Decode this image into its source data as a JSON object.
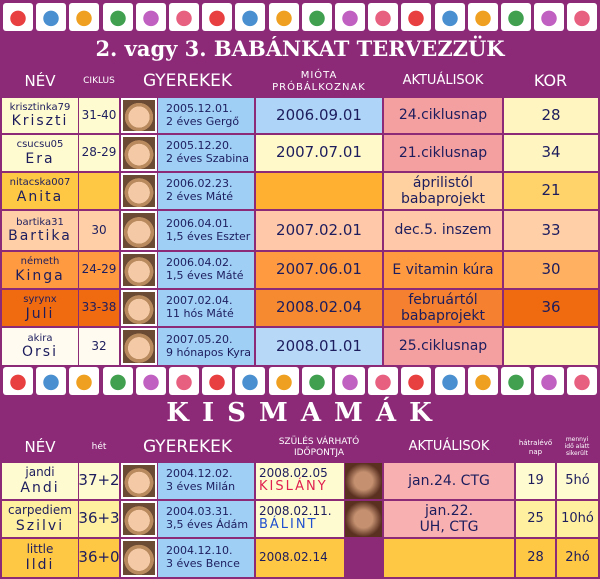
{
  "section1": {
    "title": "2. vagy 3. BABÁNKAT TERVEZZÜK",
    "headers": {
      "name": "NÉV",
      "cycle": "CIKLUS",
      "children": "GYEREKEK",
      "since": [
        "MIÓTA",
        "PRÓBÁLKOZNAK"
      ],
      "news": "AKTUÁLISOK",
      "age": "KOR"
    },
    "rows": [
      {
        "username": "krisztinka79",
        "name": "Kriszti",
        "cycle": "31-40",
        "child_date": "2005.12.01.",
        "child_desc": "2 éves Gergő",
        "since": "2006.09.01",
        "news": "24.ciklusnap",
        "age": "28"
      },
      {
        "username": "csucsu05",
        "name": "Era",
        "cycle": "28-29",
        "child_date": "2005.12.20.",
        "child_desc": "2 éves Szabina",
        "since": "2007.07.01",
        "news": "21.ciklusnap",
        "age": "34"
      },
      {
        "username": "nitacska007",
        "name": "Anita",
        "cycle": "",
        "child_date": "2006.02.23.",
        "child_desc": "2 éves Máté",
        "since": "",
        "news": [
          "áprilistól",
          "babaprojekt"
        ],
        "age": "21"
      },
      {
        "username": "bartika31",
        "name": "Bartika",
        "cycle": "30",
        "child_date": "2006.04.01.",
        "child_desc": "1,5 éves Eszter",
        "since": "2007.02.01",
        "news": "dec.5. inszem",
        "age": "33"
      },
      {
        "username": "németh",
        "name": "Kinga",
        "cycle": "24-29",
        "child_date": "2006.04.02.",
        "child_desc": "1,5 éves Máté",
        "since": "2007.06.01",
        "news": "E vitamin kúra",
        "age": "30"
      },
      {
        "username": "syrynx",
        "name": "Juli",
        "cycle": "33-38",
        "child_date": "2007.02.04.",
        "child_desc": "11 hós Máté",
        "since": "2008.02.04",
        "news": [
          "februártól",
          "babaprojekt"
        ],
        "age": "36"
      },
      {
        "username": "akira",
        "name": "Orsi",
        "cycle": "32",
        "child_date": "2007.05.20.",
        "child_desc": "9 hónapos Kyra",
        "since": "2008.01.01",
        "news": "25.ciklusnap",
        "age": ""
      }
    ]
  },
  "section2": {
    "title": "K I S M A M Á K",
    "headers": {
      "name": "NÉV",
      "week": "hét",
      "children": "GYEREKEK",
      "due": [
        "SZÜLÉS VÁRHATÓ",
        "IDŐPONTJA"
      ],
      "news": "AKTUÁLISOK",
      "days": [
        "hátralévő",
        "nap"
      ],
      "months": [
        "mennyi",
        "idő alatt",
        "sikerült"
      ]
    },
    "rows": [
      {
        "username": "jandi",
        "name": "Andi",
        "week": "37+2",
        "child_date": "2004.12.02.",
        "child_desc": "3 éves Milán",
        "due": "2008.02.05",
        "due_note": "KISLÁNY",
        "news": [
          "jan.24. CTG"
        ],
        "days": "19",
        "months": "5hó"
      },
      {
        "username": "carpediem",
        "name": "Szilvi",
        "week": "36+3",
        "child_date": "2004.03.31.",
        "child_desc": "3,5 éves Ádám",
        "due": "2008.02.11.",
        "due_note": "BÁLINT",
        "news": [
          "jan.22.",
          "UH, CTG"
        ],
        "days": "25",
        "months": "10hó"
      },
      {
        "username": "little",
        "name": "Ildi",
        "week": "36+0",
        "child_date": "2004.12.10.",
        "child_desc": "3 éves Bence",
        "due": "2008.02.14",
        "news": [
          ""
        ],
        "days": "28",
        "months": "2hó"
      }
    ]
  }
}
